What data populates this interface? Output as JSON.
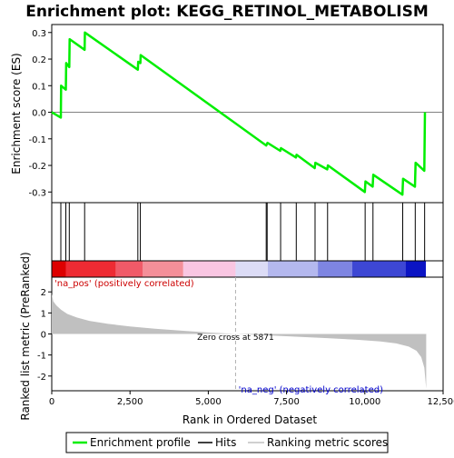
{
  "chart_data": {
    "type": "line",
    "title": "Enrichment plot: KEGG_RETINOL_METABOLISM",
    "xlabel": "Rank in Ordered Dataset",
    "xlim": [
      0,
      12500
    ],
    "x_ticks": [
      0,
      2500,
      5000,
      7500,
      10000,
      12500
    ],
    "x_tick_labels": [
      "0",
      "2,500",
      "5,000",
      "7,500",
      "10,000",
      "12,500"
    ],
    "es_panel": {
      "ylabel": "Enrichment score (ES)",
      "ylim": [
        -0.34,
        0.33
      ],
      "y_ticks": [
        -0.3,
        -0.2,
        -0.1,
        0.0,
        0.1,
        0.2,
        0.3
      ],
      "y_tick_labels": [
        "-0.3",
        "-0.2",
        "-0.1",
        "0.0",
        "0.1",
        "0.2",
        "0.3"
      ],
      "series": [
        {
          "name": "Enrichment profile",
          "color": "#00ee00",
          "points": [
            [
              0,
              0.0
            ],
            [
              290,
              -0.02
            ],
            [
              300,
              0.1
            ],
            [
              450,
              0.085
            ],
            [
              460,
              0.185
            ],
            [
              560,
              0.17
            ],
            [
              570,
              0.275
            ],
            [
              1050,
              0.235
            ],
            [
              1060,
              0.3
            ],
            [
              2750,
              0.16
            ],
            [
              2760,
              0.19
            ],
            [
              2830,
              0.185
            ],
            [
              2840,
              0.215
            ],
            [
              6850,
              -0.125
            ],
            [
              6870,
              -0.12
            ],
            [
              6890,
              -0.115
            ],
            [
              7300,
              -0.145
            ],
            [
              7320,
              -0.135
            ],
            [
              7800,
              -0.17
            ],
            [
              7820,
              -0.16
            ],
            [
              8400,
              -0.21
            ],
            [
              8420,
              -0.19
            ],
            [
              8800,
              -0.215
            ],
            [
              8820,
              -0.2
            ],
            [
              10000,
              -0.3
            ],
            [
              10020,
              -0.26
            ],
            [
              10250,
              -0.28
            ],
            [
              10270,
              -0.235
            ],
            [
              11200,
              -0.31
            ],
            [
              11220,
              -0.25
            ],
            [
              11600,
              -0.28
            ],
            [
              11620,
              -0.19
            ],
            [
              11900,
              -0.22
            ],
            [
              11920,
              0.0
            ]
          ]
        }
      ]
    },
    "hits": {
      "name": "Hits",
      "color": "#000000",
      "positions": [
        290,
        450,
        560,
        1050,
        2750,
        2830,
        6850,
        6880,
        7310,
        7810,
        8410,
        8810,
        10010,
        10260,
        11210,
        11610,
        11910
      ]
    },
    "colorbar": {
      "segments": [
        {
          "from": 0,
          "to": 450,
          "color": "#dd0000"
        },
        {
          "from": 450,
          "to": 2050,
          "color": "#ee2b33"
        },
        {
          "from": 2050,
          "to": 2900,
          "color": "#f05a68"
        },
        {
          "from": 2900,
          "to": 4200,
          "color": "#f48f99"
        },
        {
          "from": 4200,
          "to": 5871,
          "color": "#f9c6e2"
        },
        {
          "from": 5871,
          "to": 6900,
          "color": "#dcdcf6"
        },
        {
          "from": 6900,
          "to": 8500,
          "color": "#b4b8ee"
        },
        {
          "from": 8500,
          "to": 9600,
          "color": "#7e85e2"
        },
        {
          "from": 9600,
          "to": 11300,
          "color": "#3d47d4"
        },
        {
          "from": 11300,
          "to": 11950,
          "color": "#0b14c4"
        }
      ]
    },
    "metric_panel": {
      "ylabel": "Ranked list metric (PreRanked)",
      "ylim": [
        -2.7,
        2.7
      ],
      "y_ticks": [
        -2,
        -1,
        0,
        1,
        2
      ],
      "y_tick_labels": [
        "-2",
        "-1",
        "0",
        "1",
        "2"
      ],
      "series": [
        {
          "name": "Ranking metric scores",
          "color": "#c0c0c0",
          "points": [
            [
              0,
              1.9
            ],
            [
              50,
              1.55
            ],
            [
              150,
              1.35
            ],
            [
              300,
              1.15
            ],
            [
              500,
              0.95
            ],
            [
              800,
              0.78
            ],
            [
              1200,
              0.62
            ],
            [
              1800,
              0.48
            ],
            [
              2500,
              0.36
            ],
            [
              3300,
              0.25
            ],
            [
              4200,
              0.15
            ],
            [
              5000,
              0.07
            ],
            [
              5871,
              0.0
            ],
            [
              6800,
              -0.06
            ],
            [
              7800,
              -0.13
            ],
            [
              8800,
              -0.2
            ],
            [
              9800,
              -0.28
            ],
            [
              10500,
              -0.36
            ],
            [
              11000,
              -0.45
            ],
            [
              11400,
              -0.6
            ],
            [
              11650,
              -0.8
            ],
            [
              11800,
              -1.1
            ],
            [
              11900,
              -1.6
            ],
            [
              11960,
              -2.6
            ]
          ]
        }
      ],
      "pos_label": "'na_pos' (positively correlated)",
      "neg_label": "'na_neg' (negatively correlated)",
      "zero_cross_label": "Zero cross at 5871",
      "zero_cross": 5871
    },
    "legend": {
      "placement": "bottom",
      "entries": [
        {
          "label": "Enrichment profile",
          "color": "#00ee00"
        },
        {
          "label": "Hits",
          "color": "#000000"
        },
        {
          "label": "Ranking metric scores",
          "color": "#c0c0c0"
        }
      ]
    }
  }
}
